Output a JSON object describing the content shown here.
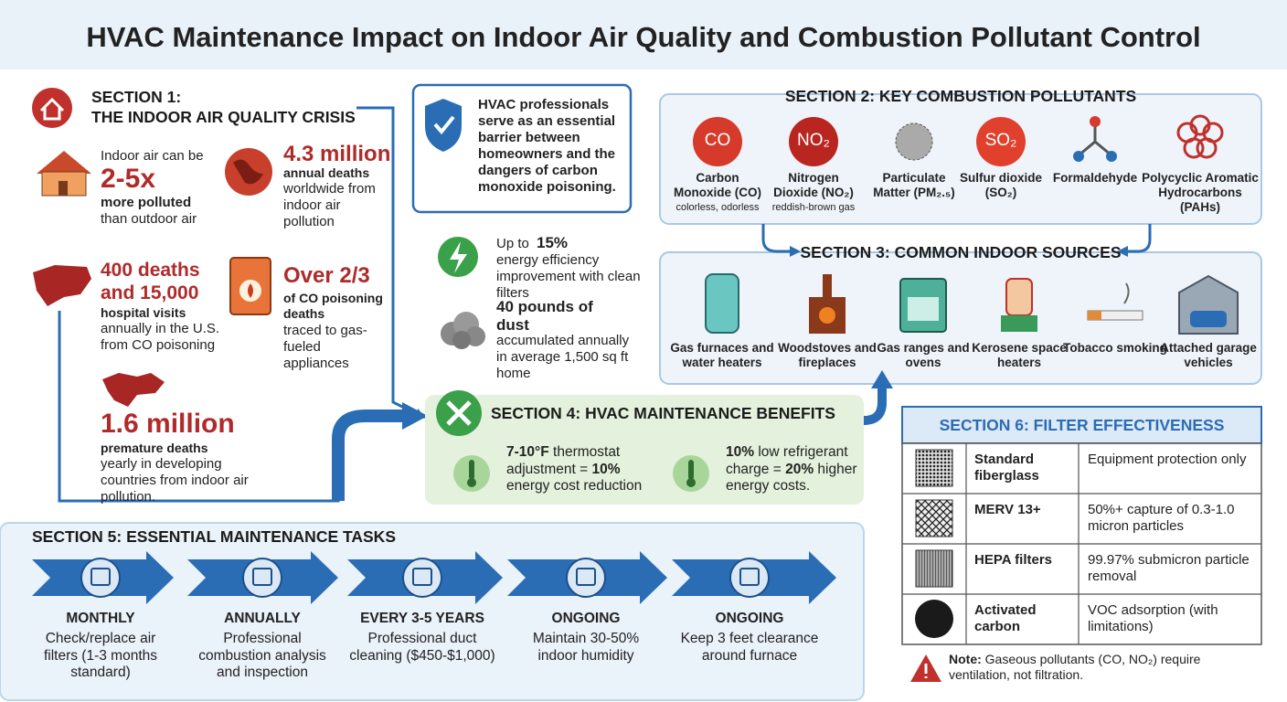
{
  "title": "HVAC Maintenance Impact on Indoor Air Quality and Combustion Pollutant Control",
  "section1": {
    "label": "SECTION 1:",
    "heading": "THE INDOOR AIR QUALITY CRISIS",
    "stats": [
      {
        "intro": "Indoor air can be",
        "figure": "2-5x",
        "emph": "more polluted",
        "text": "than outdoor air"
      },
      {
        "figure": "4.3 million",
        "emph": "annual deaths",
        "text": "worldwide from indoor air pollution"
      },
      {
        "figure": "400 deaths and 15,000",
        "emph": "hospital visits",
        "text": "annually in the U.S. from CO poisoning"
      },
      {
        "figure": "Over 2/3",
        "emph": "of CO poisoning deaths",
        "text": "traced to gas-fueled appliances"
      },
      {
        "figure": "1.6 million",
        "emph": "premature deaths",
        "text": "yearly in developing countries from indoor air pollution."
      }
    ]
  },
  "callout": "HVAC professionals serve as an essential barrier between homeowners and the dangers of carbon monoxide poisoning.",
  "energy": {
    "intro": "Up to",
    "figure": "15%",
    "text": "energy efficiency improvement with clean filters"
  },
  "dust": {
    "figure": "40 pounds of dust",
    "text": "accumulated annually in average 1,500 sq ft home"
  },
  "section2": {
    "heading": "SECTION 2: KEY COMBUSTION POLLUTANTS",
    "pollutants": [
      {
        "symbol": "CO",
        "name": "Carbon Monoxide (CO)",
        "note": "colorless, odorless"
      },
      {
        "symbol": "NO₂",
        "name": "Nitrogen Dioxide (NO₂)",
        "note": "reddish-brown gas"
      },
      {
        "name": "Particulate Matter (PM₂.₅)"
      },
      {
        "symbol": "SO₂",
        "name": "Sulfur dioxide (SO₂)"
      },
      {
        "name": "Formaldehyde"
      },
      {
        "name": "Polycyclic Aromatic Hydrocarbons (PAHs)"
      }
    ]
  },
  "section3": {
    "heading": "SECTION 3: COMMON INDOOR SOURCES",
    "sources": [
      "Gas furnaces and water heaters",
      "Woodstoves and fireplaces",
      "Gas ranges and ovens",
      "Kerosene space heaters",
      "Tobacco smoking",
      "Attached garage vehicles"
    ]
  },
  "section4": {
    "heading": "SECTION 4: HVAC MAINTENANCE BENEFITS",
    "benefits": [
      {
        "lead": "7-10°F",
        "text": "thermostat adjustment =",
        "emph": "10%",
        "tail": "energy cost reduction"
      },
      {
        "lead": "10%",
        "text": "low refrigerant charge =",
        "emph": "20%",
        "tail": "higher energy costs."
      }
    ]
  },
  "section5": {
    "heading": "SECTION 5: ESSENTIAL MAINTENANCE TASKS",
    "tasks": [
      {
        "frequency": "MONTHLY",
        "task": "Check/replace air filters (1-3 months standard)"
      },
      {
        "frequency": "ANNUALLY",
        "task": "Professional combustion analysis and inspection"
      },
      {
        "frequency": "EVERY 3-5 YEARS",
        "task": "Professional duct cleaning ($450-$1,000)"
      },
      {
        "frequency": "ONGOING",
        "task": "Maintain 30-50% indoor humidity"
      },
      {
        "frequency": "ONGOING",
        "task": "Keep 3 feet clearance around furnace"
      }
    ]
  },
  "section6": {
    "heading": "SECTION 6: FILTER EFFECTIVENESS",
    "rows": [
      [
        "Standard fiberglass",
        "Equipment protection only"
      ],
      [
        "MERV 13+",
        "50%+ capture of 0.3-1.0 micron particles"
      ],
      [
        "HEPA filters",
        "99.97% submicron particle removal"
      ],
      [
        "Activated carbon",
        "VOC adsorption (with limitations)"
      ]
    ],
    "note": {
      "label": "Note:",
      "text": "Gaseous pollutants (CO, NO₂) require ventilation, not filtration."
    }
  }
}
